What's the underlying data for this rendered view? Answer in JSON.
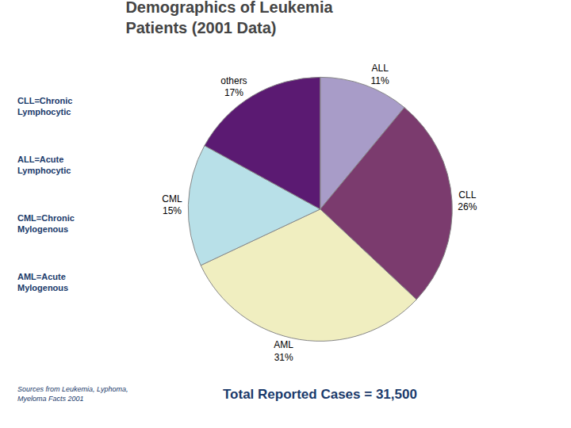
{
  "chart_data": {
    "type": "pie",
    "title": "Demographics of Leukemia\nPatients (2001 Data)",
    "categories": [
      "ALL",
      "CLL",
      "AML",
      "CML",
      "others"
    ],
    "values": [
      11,
      26,
      31,
      15,
      17
    ],
    "value_labels": [
      "11%",
      "26%",
      "31%",
      "15%",
      "17%"
    ],
    "colors": [
      "#A89CC8",
      "#7B3B6E",
      "#F0EEC0",
      "#B8E0E8",
      "#5B1A72"
    ],
    "data_labels": true,
    "annotations": [
      "CLL=Chronic\nLymphocytic",
      "ALL=Acute\nLymphocytic",
      "CML=Chronic\nMylogenous",
      "AML=Acute\nMylogenous",
      "Sources from Leukemia, Lyphoma,\nMyeloma Facts 2001",
      "Total Reported Cases = 31,500"
    ]
  }
}
